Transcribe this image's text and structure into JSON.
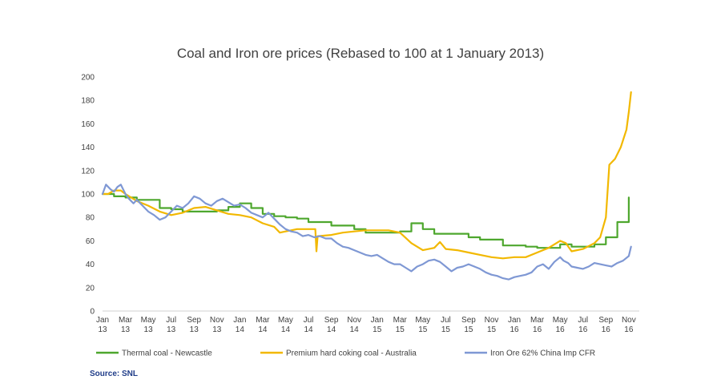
{
  "chart_data": {
    "type": "line",
    "title": "Coal and Iron ore prices (Rebased to 100 at 1 January 2013)",
    "xlabel": "",
    "ylabel": "",
    "ylim": [
      0,
      200
    ],
    "yticks": [
      0,
      20,
      40,
      60,
      80,
      100,
      120,
      140,
      160,
      180,
      200
    ],
    "xlim": [
      0,
      46.5
    ],
    "x_ticks": [
      {
        "x": 0,
        "line1": "Jan",
        "line2": "13"
      },
      {
        "x": 2,
        "line1": "Mar",
        "line2": "13"
      },
      {
        "x": 4,
        "line1": "May",
        "line2": "13"
      },
      {
        "x": 6,
        "line1": "Jul",
        "line2": "13"
      },
      {
        "x": 8,
        "line1": "Sep",
        "line2": "13"
      },
      {
        "x": 10,
        "line1": "Nov",
        "line2": "13"
      },
      {
        "x": 12,
        "line1": "Jan",
        "line2": "14"
      },
      {
        "x": 14,
        "line1": "Mar",
        "line2": "14"
      },
      {
        "x": 16,
        "line1": "May",
        "line2": "14"
      },
      {
        "x": 18,
        "line1": "Jul",
        "line2": "14"
      },
      {
        "x": 20,
        "line1": "Sep",
        "line2": "14"
      },
      {
        "x": 22,
        "line1": "Nov",
        "line2": "14"
      },
      {
        "x": 24,
        "line1": "Jan",
        "line2": "15"
      },
      {
        "x": 26,
        "line1": "Mar",
        "line2": "15"
      },
      {
        "x": 28,
        "line1": "May",
        "line2": "15"
      },
      {
        "x": 30,
        "line1": "Jul",
        "line2": "15"
      },
      {
        "x": 32,
        "line1": "Sep",
        "line2": "15"
      },
      {
        "x": 34,
        "line1": "Nov",
        "line2": "15"
      },
      {
        "x": 36,
        "line1": "Jan",
        "line2": "16"
      },
      {
        "x": 38,
        "line1": "Mar",
        "line2": "16"
      },
      {
        "x": 40,
        "line1": "May",
        "line2": "16"
      },
      {
        "x": 42,
        "line1": "Jul",
        "line2": "16"
      },
      {
        "x": 44,
        "line1": "Sep",
        "line2": "16"
      },
      {
        "x": 46,
        "line1": "Nov",
        "line2": "16"
      }
    ],
    "series": [
      {
        "name": "Thermal coal - Newcastle",
        "color": "#4ea72e",
        "points": [
          [
            0,
            100
          ],
          [
            1,
            100
          ],
          [
            1,
            98
          ],
          [
            2,
            98
          ],
          [
            2,
            97
          ],
          [
            3,
            97
          ],
          [
            3,
            95
          ],
          [
            5,
            95
          ],
          [
            5,
            88
          ],
          [
            6,
            88
          ],
          [
            6,
            87
          ],
          [
            7,
            87
          ],
          [
            7,
            85
          ],
          [
            10,
            85
          ],
          [
            10,
            86
          ],
          [
            11,
            86
          ],
          [
            11,
            89
          ],
          [
            12,
            89
          ],
          [
            12,
            92
          ],
          [
            13,
            92
          ],
          [
            13,
            88
          ],
          [
            14,
            88
          ],
          [
            14,
            83
          ],
          [
            15,
            83
          ],
          [
            15,
            81
          ],
          [
            16,
            81
          ],
          [
            16,
            80
          ],
          [
            17,
            80
          ],
          [
            17,
            79
          ],
          [
            18,
            79
          ],
          [
            18,
            76
          ],
          [
            20,
            76
          ],
          [
            20,
            73
          ],
          [
            22,
            73
          ],
          [
            22,
            70
          ],
          [
            23,
            70
          ],
          [
            23,
            67
          ],
          [
            26,
            67
          ],
          [
            26,
            68
          ],
          [
            27,
            68
          ],
          [
            27,
            75
          ],
          [
            28,
            75
          ],
          [
            28,
            70
          ],
          [
            29,
            70
          ],
          [
            29,
            66
          ],
          [
            32,
            66
          ],
          [
            32,
            63
          ],
          [
            33,
            63
          ],
          [
            33,
            61
          ],
          [
            35,
            61
          ],
          [
            35,
            56
          ],
          [
            37,
            56
          ],
          [
            37,
            55
          ],
          [
            38,
            55
          ],
          [
            38,
            54
          ],
          [
            40,
            54
          ],
          [
            40,
            57
          ],
          [
            41,
            57
          ],
          [
            41,
            55
          ],
          [
            43,
            55
          ],
          [
            43,
            57
          ],
          [
            44,
            57
          ],
          [
            44,
            63
          ],
          [
            45,
            63
          ],
          [
            45,
            76
          ],
          [
            46,
            76
          ],
          [
            46,
            97
          ]
        ]
      },
      {
        "name": "Premium hard coking coal - Australia",
        "color": "#f2b800",
        "points": [
          [
            0,
            100
          ],
          [
            0.5,
            100
          ],
          [
            1,
            103
          ],
          [
            1.6,
            103
          ],
          [
            2,
            100
          ],
          [
            3,
            94
          ],
          [
            4,
            90
          ],
          [
            5,
            85
          ],
          [
            6,
            82
          ],
          [
            7,
            84
          ],
          [
            8,
            88
          ],
          [
            9,
            89
          ],
          [
            10,
            86
          ],
          [
            11,
            83
          ],
          [
            12,
            82
          ],
          [
            13,
            80
          ],
          [
            14,
            75
          ],
          [
            15,
            72
          ],
          [
            15.5,
            67
          ],
          [
            16,
            68
          ],
          [
            17,
            70
          ],
          [
            18,
            70
          ],
          [
            18.6,
            70
          ],
          [
            18.7,
            51
          ],
          [
            18.8,
            64
          ],
          [
            20,
            65
          ],
          [
            21,
            67
          ],
          [
            22,
            68
          ],
          [
            23,
            69
          ],
          [
            24,
            69
          ],
          [
            25,
            69
          ],
          [
            26,
            67
          ],
          [
            27,
            58
          ],
          [
            28,
            52
          ],
          [
            29,
            54
          ],
          [
            29.5,
            59
          ],
          [
            30,
            53
          ],
          [
            31,
            52
          ],
          [
            32,
            50
          ],
          [
            33,
            48
          ],
          [
            34,
            46
          ],
          [
            35,
            45
          ],
          [
            36,
            46
          ],
          [
            37,
            46
          ],
          [
            38,
            50
          ],
          [
            39,
            54
          ],
          [
            40,
            60
          ],
          [
            40.5,
            58
          ],
          [
            41,
            51
          ],
          [
            42,
            53
          ],
          [
            43,
            58
          ],
          [
            43.5,
            63
          ],
          [
            44,
            80
          ],
          [
            44.3,
            125
          ],
          [
            44.8,
            130
          ],
          [
            45.3,
            140
          ],
          [
            45.8,
            155
          ],
          [
            46,
            170
          ],
          [
            46.2,
            187
          ]
        ]
      },
      {
        "name": "Iron Ore 62% China Imp CFR",
        "color": "#7f98d4",
        "points": [
          [
            0,
            100
          ],
          [
            0.3,
            108
          ],
          [
            0.7,
            104
          ],
          [
            1,
            102
          ],
          [
            1.3,
            106
          ],
          [
            1.6,
            108
          ],
          [
            2,
            100
          ],
          [
            2.3,
            96
          ],
          [
            2.7,
            92
          ],
          [
            3,
            95
          ],
          [
            3.5,
            90
          ],
          [
            4,
            85
          ],
          [
            4.5,
            82
          ],
          [
            5,
            78
          ],
          [
            5.5,
            80
          ],
          [
            6,
            85
          ],
          [
            6.5,
            90
          ],
          [
            7,
            88
          ],
          [
            7.5,
            92
          ],
          [
            8,
            98
          ],
          [
            8.5,
            96
          ],
          [
            9,
            92
          ],
          [
            9.5,
            90
          ],
          [
            10,
            94
          ],
          [
            10.5,
            96
          ],
          [
            11,
            93
          ],
          [
            11.5,
            90
          ],
          [
            12,
            91
          ],
          [
            12.5,
            88
          ],
          [
            13,
            84
          ],
          [
            13.5,
            82
          ],
          [
            14,
            80
          ],
          [
            14.5,
            84
          ],
          [
            15,
            79
          ],
          [
            15.5,
            74
          ],
          [
            16,
            70
          ],
          [
            16.5,
            68
          ],
          [
            17,
            67
          ],
          [
            17.5,
            64
          ],
          [
            18,
            65
          ],
          [
            18.5,
            63
          ],
          [
            19,
            64
          ],
          [
            19.5,
            62
          ],
          [
            20,
            62
          ],
          [
            20.5,
            58
          ],
          [
            21,
            55
          ],
          [
            21.5,
            54
          ],
          [
            22,
            52
          ],
          [
            22.5,
            50
          ],
          [
            23,
            48
          ],
          [
            23.5,
            47
          ],
          [
            24,
            48
          ],
          [
            24.5,
            45
          ],
          [
            25,
            42
          ],
          [
            25.5,
            40
          ],
          [
            26,
            40
          ],
          [
            26.5,
            37
          ],
          [
            27,
            34
          ],
          [
            27.5,
            38
          ],
          [
            28,
            40
          ],
          [
            28.5,
            43
          ],
          [
            29,
            44
          ],
          [
            29.5,
            42
          ],
          [
            30,
            38
          ],
          [
            30.5,
            34
          ],
          [
            31,
            37
          ],
          [
            31.5,
            38
          ],
          [
            32,
            40
          ],
          [
            32.5,
            38
          ],
          [
            33,
            36
          ],
          [
            33.5,
            33
          ],
          [
            34,
            31
          ],
          [
            34.5,
            30
          ],
          [
            35,
            28
          ],
          [
            35.5,
            27
          ],
          [
            36,
            29
          ],
          [
            36.5,
            30
          ],
          [
            37,
            31
          ],
          [
            37.5,
            33
          ],
          [
            38,
            38
          ],
          [
            38.5,
            40
          ],
          [
            39,
            36
          ],
          [
            39.5,
            42
          ],
          [
            40,
            46
          ],
          [
            40.3,
            43
          ],
          [
            40.7,
            41
          ],
          [
            41,
            38
          ],
          [
            41.5,
            37
          ],
          [
            42,
            36
          ],
          [
            42.5,
            38
          ],
          [
            43,
            41
          ],
          [
            43.5,
            40
          ],
          [
            44,
            39
          ],
          [
            44.5,
            38
          ],
          [
            45,
            41
          ],
          [
            45.5,
            43
          ],
          [
            46,
            47
          ],
          [
            46.2,
            55
          ]
        ]
      }
    ],
    "legend": [
      {
        "label": "Thermal coal - Newcastle",
        "color": "#4ea72e"
      },
      {
        "label": "Premium hard coking coal - Australia",
        "color": "#f2b800"
      },
      {
        "label": "Iron Ore 62% China Imp CFR",
        "color": "#7f98d4"
      }
    ]
  },
  "source": "Source: SNL"
}
